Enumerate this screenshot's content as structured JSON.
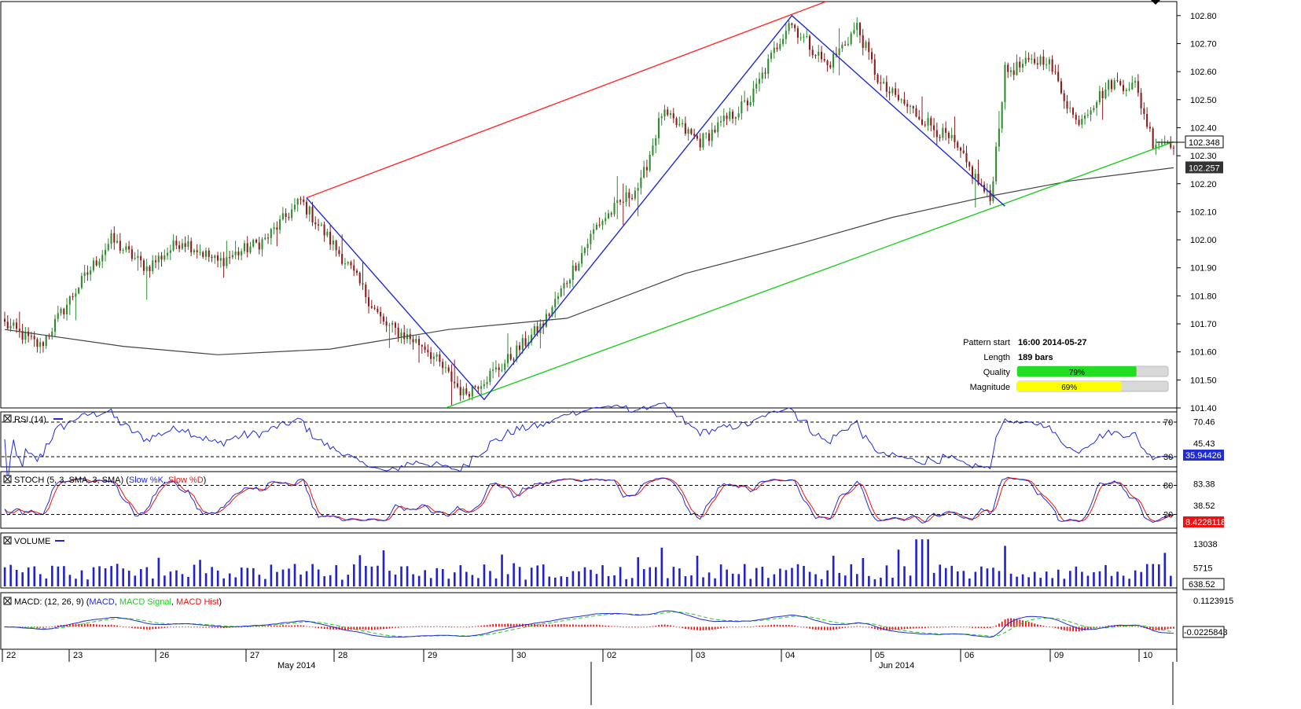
{
  "colors": {
    "bull": "#2e8b2e",
    "bear": "#8b1a1a",
    "ma": "#444444",
    "upper_trend": "#ff2a2a",
    "lower_trend": "#22cc22",
    "pattern": "#1f2bd6",
    "rsi": "#1f2bd6",
    "stoch_k": "#1f2bd6",
    "stoch_d": "#ee1111",
    "volume": "#2222cc",
    "macd": "#1f2bd6",
    "macd_signal": "#22cc22",
    "macd_hist": "#ee1111",
    "quality_fill": "#22dd22",
    "magnitude_fill": "#ffff00"
  },
  "chart_data": {
    "type": "candlestick",
    "grid": false,
    "price_axis": {
      "ylim": [
        101.4,
        102.85
      ],
      "ticks": [
        "102.80",
        "102.70",
        "102.60",
        "102.50",
        "102.40",
        "102.30",
        "102.20",
        "102.10",
        "102.00",
        "101.90",
        "101.80",
        "101.70",
        "101.60",
        "101.50",
        "101.40"
      ],
      "current_price": "102.348",
      "ma_value": "102.257"
    },
    "time_axis": {
      "day_labels": [
        "22",
        "23",
        "26",
        "27",
        "28",
        "29",
        "30",
        "02",
        "03",
        "04",
        "05",
        "06",
        "09",
        "10"
      ],
      "month_labels": [
        "May 2014",
        "Jun 2014"
      ]
    },
    "keypoints": [
      {
        "bar": 0,
        "price": 101.7
      },
      {
        "bar": 12,
        "price": 101.62
      },
      {
        "bar": 24,
        "price": 101.82
      },
      {
        "bar": 36,
        "price": 102.0
      },
      {
        "bar": 48,
        "price": 101.9
      },
      {
        "bar": 60,
        "price": 102.0
      },
      {
        "bar": 72,
        "price": 101.92
      },
      {
        "bar": 88,
        "price": 102.0
      },
      {
        "bar": 100,
        "price": 102.14
      },
      {
        "bar": 116,
        "price": 101.91
      },
      {
        "bar": 128,
        "price": 101.7
      },
      {
        "bar": 142,
        "price": 101.62
      },
      {
        "bar": 155,
        "price": 101.45
      },
      {
        "bar": 168,
        "price": 101.55
      },
      {
        "bar": 182,
        "price": 101.7
      },
      {
        "bar": 200,
        "price": 102.05
      },
      {
        "bar": 215,
        "price": 102.2
      },
      {
        "bar": 222,
        "price": 102.45
      },
      {
        "bar": 235,
        "price": 102.35
      },
      {
        "bar": 252,
        "price": 102.5
      },
      {
        "bar": 265,
        "price": 102.78
      },
      {
        "bar": 278,
        "price": 102.62
      },
      {
        "bar": 288,
        "price": 102.76
      },
      {
        "bar": 296,
        "price": 102.55
      },
      {
        "bar": 308,
        "price": 102.45
      },
      {
        "bar": 320,
        "price": 102.35
      },
      {
        "bar": 333,
        "price": 102.14
      },
      {
        "bar": 338,
        "price": 102.6
      },
      {
        "bar": 352,
        "price": 102.65
      },
      {
        "bar": 362,
        "price": 102.42
      },
      {
        "bar": 374,
        "price": 102.56
      },
      {
        "bar": 382,
        "price": 102.55
      },
      {
        "bar": 388,
        "price": 102.35
      }
    ],
    "moving_average": [
      {
        "bar": 0,
        "price": 101.68
      },
      {
        "bar": 40,
        "price": 101.62
      },
      {
        "bar": 72,
        "price": 101.59
      },
      {
        "bar": 110,
        "price": 101.61
      },
      {
        "bar": 150,
        "price": 101.68
      },
      {
        "bar": 190,
        "price": 101.72
      },
      {
        "bar": 230,
        "price": 101.88
      },
      {
        "bar": 270,
        "price": 101.99
      },
      {
        "bar": 300,
        "price": 102.08
      },
      {
        "bar": 330,
        "price": 102.15
      },
      {
        "bar": 360,
        "price": 102.21
      },
      {
        "bar": 395,
        "price": 102.257
      }
    ],
    "upper_trendline": [
      {
        "bar": 102,
        "price": 102.15
      },
      {
        "bar": 280,
        "price": 102.86
      }
    ],
    "lower_trendline": [
      {
        "bar": 149,
        "price": 101.4
      },
      {
        "bar": 395,
        "price": 102.35
      }
    ],
    "pattern_path": [
      {
        "bar": 102,
        "price": 102.15
      },
      {
        "bar": 162,
        "price": 101.43
      },
      {
        "bar": 266,
        "price": 102.8
      },
      {
        "bar": 338,
        "price": 102.12
      }
    ],
    "pattern_info": {
      "start_label": "Pattern start",
      "start_value": "16:00 2014-05-27",
      "length_label": "Length",
      "length_value": "189 bars",
      "quality_label": "Quality",
      "quality_value": "79%",
      "quality_fraction": 0.79,
      "magnitude_label": "Magnitude",
      "magnitude_value": "69%",
      "magnitude_fraction": 0.69
    },
    "rsi": {
      "title": "RSI (14)",
      "levels": [
        "70",
        "30"
      ],
      "ticks": [
        "70.46",
        "45.43"
      ],
      "current": "35.94426",
      "ylim": [
        20,
        80
      ]
    },
    "stoch": {
      "title_prefix": "STOCH (5, 3, SMA, 3, SMA) (",
      "k_label": "Slow %K",
      "d_label": "Slow %D",
      "title_suffix": ")",
      "levels": [
        "80",
        "20"
      ],
      "ticks": [
        "83.38",
        "38.52"
      ],
      "current": "8.4228118",
      "ylim": [
        -5,
        105
      ]
    },
    "volume": {
      "title": "VOLUME",
      "ticks": [
        "13038",
        "5715"
      ],
      "current": "638.52",
      "ylim": [
        0,
        16000
      ]
    },
    "macd": {
      "title_prefix": "MACD: (12, 26, 9) (",
      "macd_label": "MACD",
      "signal_label": "MACD Signal",
      "hist_label": "MACD Hist",
      "title_suffix": ")",
      "ticks": [
        "0.1123915"
      ],
      "current": "-0.0225843",
      "ylim": [
        -0.09,
        0.14
      ]
    }
  }
}
